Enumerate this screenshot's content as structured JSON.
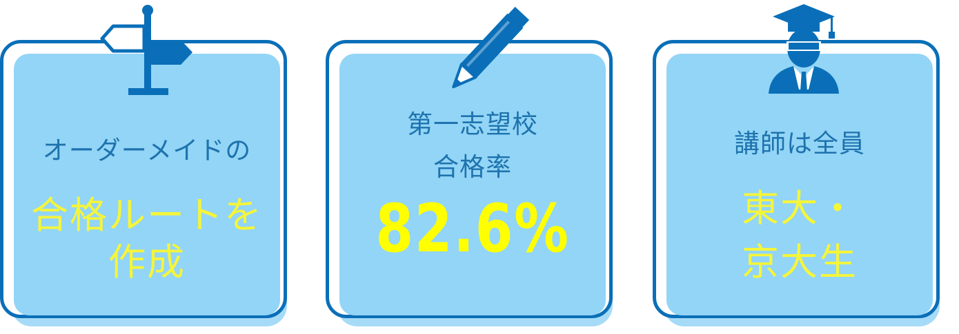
{
  "colors": {
    "border": "#0a6fb8",
    "inner": "#93d5f6",
    "shadow": "#a6dbf7",
    "accent": "#ffff00",
    "icon": "#0a6fb8"
  },
  "cards": [
    {
      "icon": "signpost-icon",
      "lines": [
        "オーダーメイドの",
        "合格ルートを",
        "作成"
      ]
    },
    {
      "icon": "pencil-icon",
      "lines": [
        "第一志望校",
        "合格率",
        "82.6%"
      ]
    },
    {
      "icon": "graduate-icon",
      "lines": [
        "講師は全員",
        "東大・",
        "京大生"
      ]
    }
  ]
}
